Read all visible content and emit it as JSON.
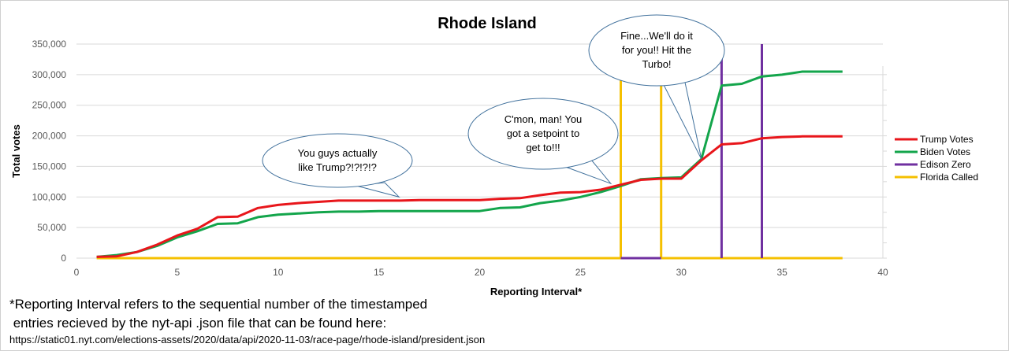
{
  "chart_data": {
    "type": "line",
    "title": "Rhode Island",
    "xlabel": "Reporting Interval*",
    "ylabel": "Total votes",
    "xlim": [
      0,
      40
    ],
    "ylim": [
      0,
      350000
    ],
    "x_ticks": [
      "0",
      "5",
      "10",
      "15",
      "20",
      "25",
      "30",
      "35",
      "40"
    ],
    "y_ticks": [
      "0",
      "50,000",
      "100,000",
      "150,000",
      "200,000",
      "250,000",
      "300,000",
      "350,000"
    ],
    "grid": "horizontal",
    "legend_position": "right",
    "series": [
      {
        "name": "Trump Votes",
        "color": "#e8161b",
        "x": [
          1,
          2,
          3,
          4,
          5,
          6,
          7,
          8,
          9,
          10,
          11,
          12,
          13,
          14,
          15,
          16,
          17,
          18,
          19,
          20,
          21,
          22,
          23,
          24,
          25,
          26,
          27,
          28,
          29,
          30,
          31,
          32,
          33,
          34,
          35,
          36,
          37,
          38
        ],
        "y": [
          2000,
          3000,
          10000,
          22000,
          37000,
          48000,
          67000,
          68000,
          82000,
          87000,
          90000,
          92000,
          94000,
          94000,
          94000,
          94000,
          95000,
          95000,
          95000,
          95000,
          97000,
          98000,
          103000,
          107000,
          108000,
          112000,
          120000,
          128000,
          130000,
          130000,
          160000,
          186000,
          188000,
          196000,
          198000,
          199000,
          199000,
          199000
        ]
      },
      {
        "name": "Biden Votes",
        "color": "#13a54b",
        "x": [
          1,
          2,
          3,
          4,
          5,
          6,
          7,
          8,
          9,
          10,
          11,
          12,
          13,
          14,
          15,
          16,
          17,
          18,
          19,
          20,
          21,
          22,
          23,
          24,
          25,
          26,
          27,
          28,
          29,
          30,
          31,
          32,
          33,
          34,
          35,
          36,
          37,
          38
        ],
        "y": [
          2000,
          5000,
          10000,
          20000,
          34000,
          44000,
          56000,
          57000,
          67000,
          71000,
          73000,
          75000,
          76000,
          76000,
          77000,
          77000,
          77000,
          77000,
          77000,
          77000,
          82000,
          83000,
          90000,
          94000,
          100000,
          108000,
          118000,
          129000,
          131000,
          132000,
          162000,
          282000,
          285000,
          297000,
          300000,
          305000,
          305000,
          305000
        ]
      },
      {
        "name": "Edison Zero",
        "color": "#7030a0",
        "segments": [
          {
            "x": [
              27,
              29
            ],
            "y": [
              0,
              0
            ]
          },
          {
            "x": [
              32,
              32
            ],
            "y": [
              0,
              350000
            ]
          },
          {
            "x": [
              34,
              34
            ],
            "y": [
              0,
              350000
            ]
          }
        ]
      },
      {
        "name": "Florida Called",
        "color": "#f5c000",
        "segments": [
          {
            "x": [
              1,
              27
            ],
            "y": [
              0,
              0
            ]
          },
          {
            "x": [
              29,
              38
            ],
            "y": [
              0,
              0
            ]
          },
          {
            "x": [
              27,
              27
            ],
            "y": [
              0,
              350000
            ]
          },
          {
            "x": [
              29,
              29
            ],
            "y": [
              0,
              350000
            ]
          }
        ]
      }
    ],
    "annotations": [
      {
        "lines": [
          "You guys actually",
          "like Trump?!?!?!?"
        ],
        "pointer": [
          16,
          100000
        ]
      },
      {
        "lines": [
          "C'mon, man! You",
          "got a setpoint to",
          "get to!!!"
        ],
        "pointer": [
          26.5,
          122000
        ]
      },
      {
        "lines": [
          "Fine...We'll do it",
          "for you!! Hit the",
          "Turbo!"
        ],
        "pointer": [
          31,
          162000
        ]
      }
    ]
  },
  "footnote": {
    "line1": "*Reporting Interval refers to the sequential number of the timestamped",
    "line2": " entries recieved by the nyt-api .json file that can be found here:",
    "url": "https://static01.nyt.com/elections-assets/2020/data/api/2020-11-03/race-page/rhode-island/president.json"
  }
}
